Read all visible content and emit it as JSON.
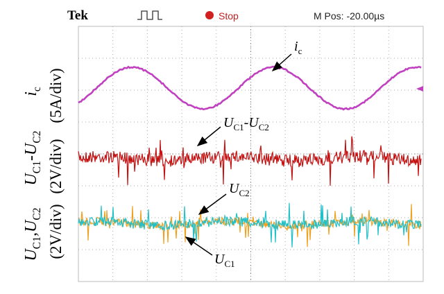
{
  "header": {
    "brand": "Tek",
    "status": "Stop",
    "position": "M Pos: -20.00µs"
  },
  "traces": [
    {
      "name": [
        "i",
        "c"
      ],
      "scale": "(5A/div)"
    },
    {
      "name": [
        "U",
        "C1",
        "-U",
        "C2"
      ],
      "scale": "(2V/div)"
    },
    {
      "name": [
        "U",
        "C1",
        ",U",
        "C2"
      ],
      "scale": "(2V/div)"
    }
  ],
  "annotations": [
    {
      "parts": [
        "i",
        "c"
      ]
    },
    {
      "parts": [
        "U",
        "C1",
        "-U",
        "C2"
      ]
    },
    {
      "parts": [
        "U",
        "C2"
      ]
    },
    {
      "parts": [
        "U",
        "C1"
      ]
    }
  ]
}
